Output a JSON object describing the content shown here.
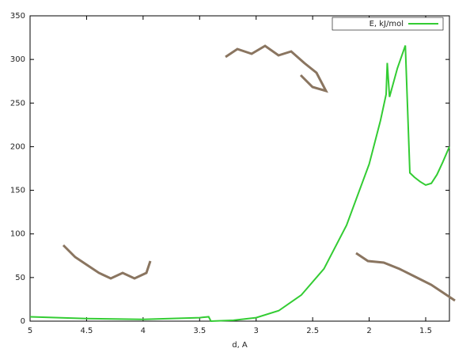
{
  "chart_data": {
    "type": "line",
    "x_label": "d, A",
    "x": [
      5,
      4.5,
      4,
      3.5,
      3.42,
      3.4,
      3.2,
      3.0,
      2.8,
      2.6,
      2.4,
      2.2,
      2.0,
      1.9,
      1.85,
      1.84,
      1.82,
      1.75,
      1.68,
      1.64,
      1.6,
      1.55,
      1.5,
      1.45,
      1.4,
      1.35,
      1.29
    ],
    "series": [
      {
        "name": "E, kJ/mol",
        "color": "#33cc33",
        "values": [
          5,
          3,
          2,
          4,
          5,
          0,
          1,
          4,
          12,
          30,
          60,
          110,
          180,
          230,
          260,
          296,
          257,
          290,
          316,
          170,
          165,
          160,
          156,
          158,
          168,
          182,
          200
        ]
      }
    ],
    "xlim": [
      5,
      1.29
    ],
    "ylim": [
      0,
      350
    ],
    "xticks": [
      5,
      4.5,
      4,
      3.5,
      3,
      2.5,
      2,
      1.5
    ],
    "yticks": [
      0,
      50,
      100,
      150,
      200,
      250,
      300,
      350
    ],
    "legend": "top-right"
  }
}
